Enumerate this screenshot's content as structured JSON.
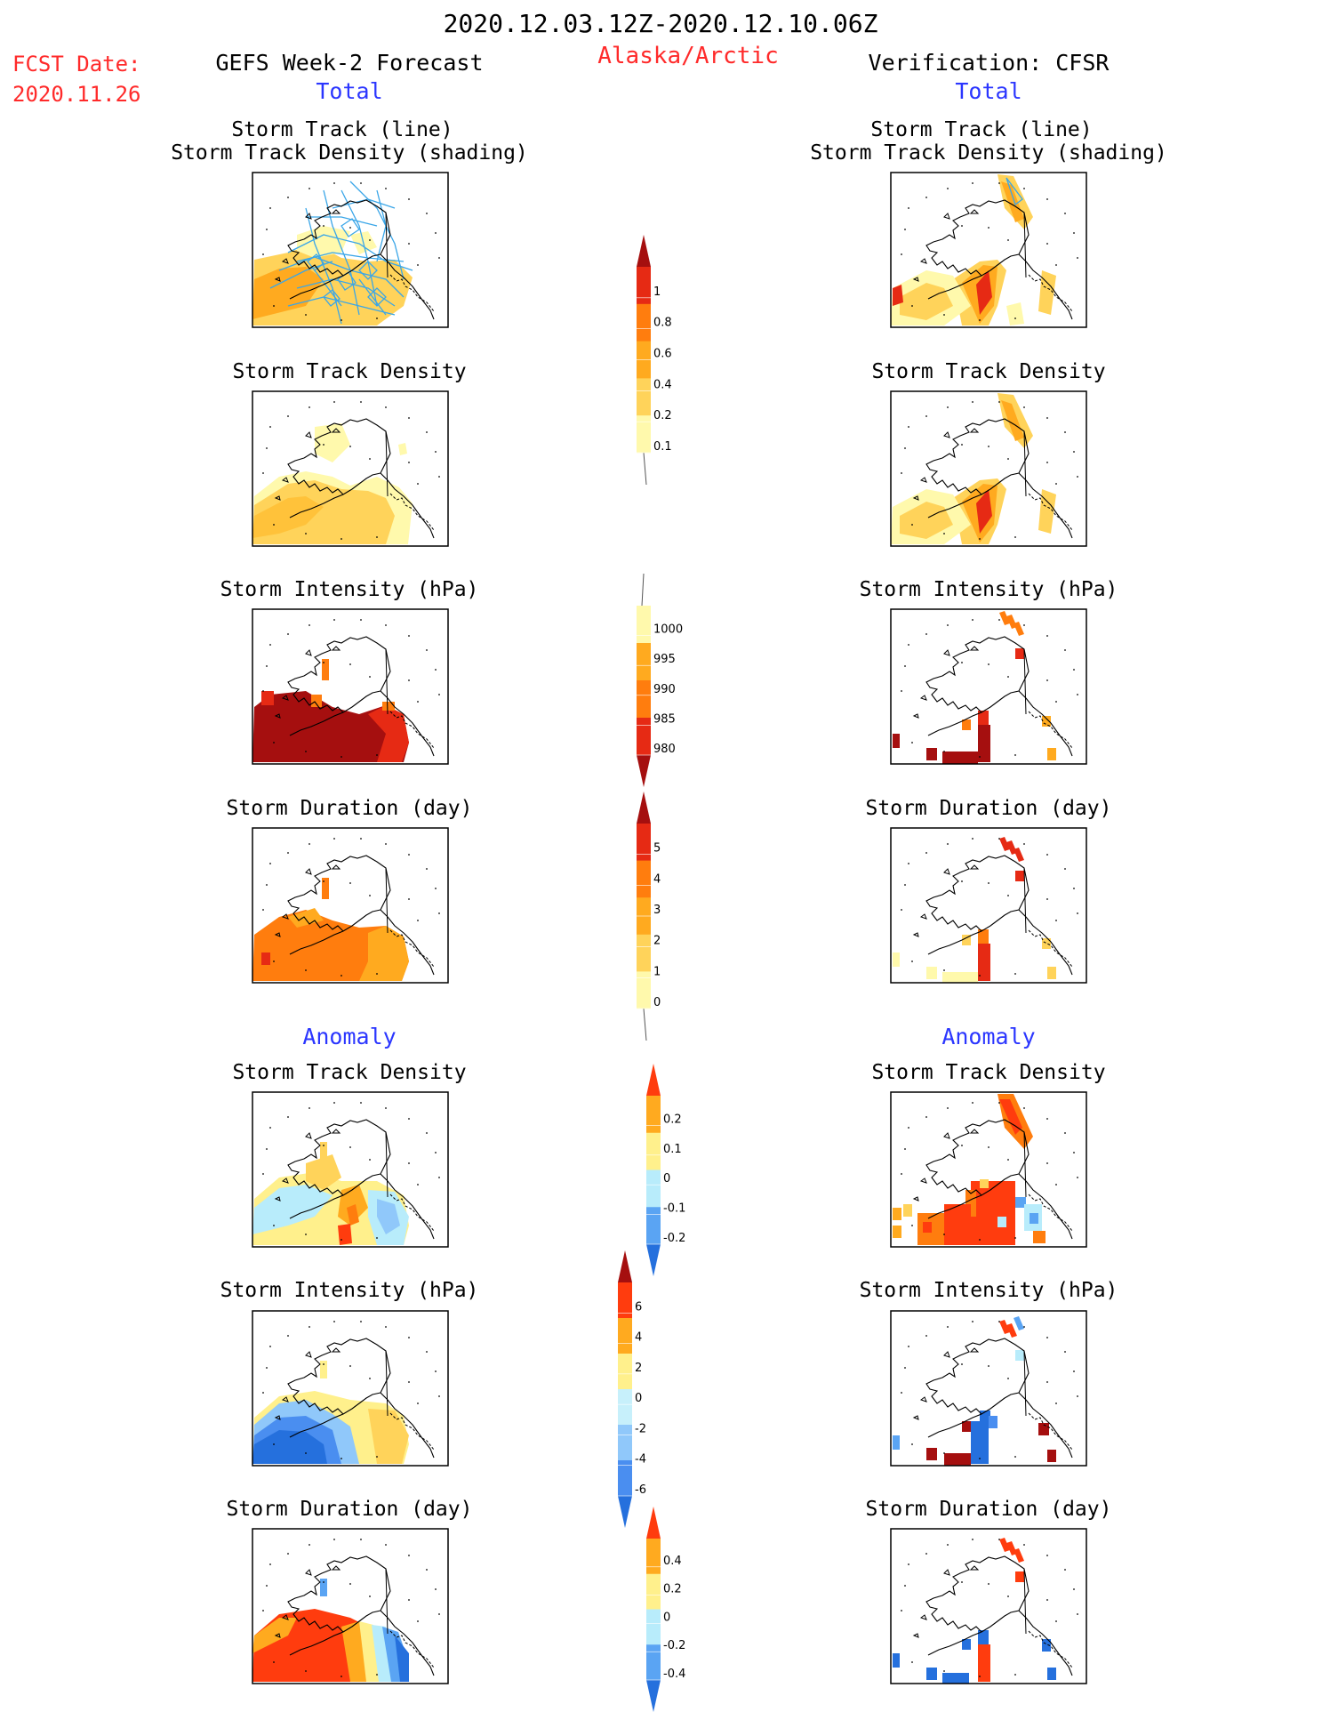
{
  "header": {
    "title": "2020.12.03.12Z-2020.12.10.06Z",
    "fcst_label": "FCST Date:",
    "fcst_date": "2020.11.26",
    "forecast_name": "GEFS Week-2 Forecast",
    "region": "Alaska/Arctic",
    "verification": "Verification: CFSR",
    "total_label": "Total",
    "anomaly_label": "Anomaly"
  },
  "panel_titles": {
    "track_line": "Storm Track (line)",
    "track_shading": "Storm Track Density (shading)",
    "density": "Storm Track Density",
    "intensity": "Storm Intensity (hPa)",
    "duration": "Storm Duration (day)"
  },
  "colors": {
    "title_red": "#ff2a2a",
    "label_blue": "#2b36ff",
    "track_line": "#3aa6e8",
    "map_line": "#000000"
  },
  "chart_data": [
    {
      "type": "heatmap",
      "name": "colorbar-density-total",
      "levels": [
        0.1,
        0.2,
        0.4,
        0.6,
        0.8,
        1
      ],
      "tick_labels": [
        "0.1",
        "0.2",
        "0.4",
        "0.6",
        "0.8",
        "1"
      ],
      "colors": [
        "#ffffff",
        "#fff9ac",
        "#ffd35a",
        "#ffaa1f",
        "#ff7d0e",
        "#e62a14",
        "#a50f0f"
      ]
    },
    {
      "type": "heatmap",
      "name": "colorbar-intensity-total",
      "levels": [
        980,
        985,
        990,
        995,
        1000
      ],
      "tick_labels": [
        "980",
        "985",
        "990",
        "995",
        "1000"
      ],
      "colors": [
        "#a50f0f",
        "#e62a14",
        "#ff7d0e",
        "#ffaa1f",
        "#fff9ac",
        "#ffffff"
      ]
    },
    {
      "type": "heatmap",
      "name": "colorbar-duration-total",
      "levels": [
        0,
        1,
        2,
        3,
        4,
        5
      ],
      "tick_labels": [
        "0",
        "1",
        "2",
        "3",
        "4",
        "5"
      ],
      "colors": [
        "#ffffff",
        "#fff9ac",
        "#ffd35a",
        "#ffaa1f",
        "#ff7d0e",
        "#e62a14",
        "#a50f0f"
      ]
    },
    {
      "type": "heatmap",
      "name": "colorbar-density-anomaly",
      "levels": [
        -0.2,
        -0.1,
        0,
        0.1,
        0.2
      ],
      "tick_labels": [
        "-0.2",
        "-0.1",
        "0",
        "0.1",
        "0.2"
      ],
      "colors": [
        "#2570dd",
        "#5aa4f3",
        "#b8ecfb",
        "#fff08c",
        "#ffaa1f",
        "#ff3c0e"
      ]
    },
    {
      "type": "heatmap",
      "name": "colorbar-intensity-anomaly",
      "levels": [
        -6,
        -4,
        -2,
        0,
        2,
        4,
        6
      ],
      "tick_labels": [
        "-6",
        "-4",
        "-2",
        "0",
        "2",
        "4",
        "6"
      ],
      "colors": [
        "#2570dd",
        "#4a8ef0",
        "#90c8fa",
        "#c7f0fb",
        "#fff08c",
        "#ffaa1f",
        "#ff3c0e",
        "#a50f0f"
      ]
    },
    {
      "type": "heatmap",
      "name": "colorbar-duration-anomaly",
      "levels": [
        -0.4,
        -0.2,
        0,
        0.2,
        0.4
      ],
      "tick_labels": [
        "-0.4",
        "-0.2",
        "0",
        "0.2",
        "0.4"
      ],
      "colors": [
        "#2570dd",
        "#5aa4f3",
        "#b8ecfb",
        "#fff08c",
        "#ffaa1f",
        "#ff3c0e"
      ]
    }
  ]
}
